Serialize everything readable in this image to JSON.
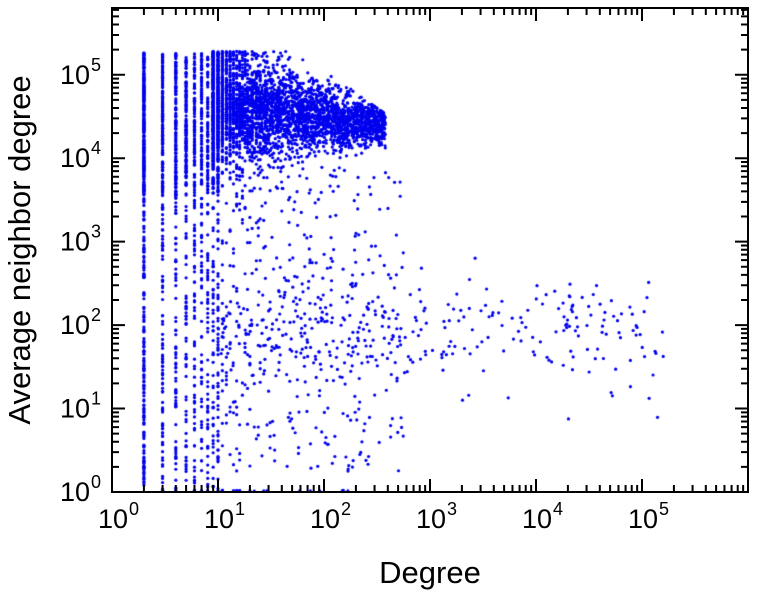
{
  "page": {
    "background": "#ffffff"
  },
  "chart_data": {
    "type": "scatter",
    "title": "",
    "xlabel": "Degree",
    "ylabel": "Average neighbor degree",
    "x_scale": "log",
    "y_scale": "log",
    "x_range_log10": [
      0,
      6.0
    ],
    "y_range_log10": [
      0,
      5.8
    ],
    "x_major_ticks_log10": [
      0,
      1,
      2,
      3,
      4,
      5
    ],
    "y_major_ticks_log10": [
      0,
      1,
      2,
      3,
      4,
      5
    ],
    "tick_label_base": "10",
    "grid": "off",
    "legend": "none",
    "axis_color": "#000000",
    "marker": {
      "shape": "circle",
      "color": "#0000ee",
      "radius": 1.6
    },
    "seed": 42,
    "description": "Log-log scatter of average neighbor degree vs degree: dense vertical columns at integer degrees 1-10 spanning y=1 to 2e5; dense cloud between degree ~8 and ~400 at average neighbor degree ~1e4-2e5 narrowing to the right; sparse scatter below; sparse horizontal band near y~1e2 extending out to degree ~1e5.",
    "clusters": [
      {
        "kind": "columns",
        "name": "integer-degree-columns",
        "xs": [
          1,
          2,
          3,
          4,
          5,
          6,
          7,
          8,
          9,
          10
        ],
        "counts": [
          500,
          400,
          260,
          210,
          180,
          160,
          140,
          130,
          115,
          105
        ],
        "mix": [
          {
            "frac": 0.52,
            "ylog": [
              0.0,
              5.26
            ]
          },
          {
            "frac": 0.48,
            "ylog": [
              3.55,
              5.26
            ]
          }
        ]
      },
      {
        "kind": "blob",
        "name": "high-knn-cloud",
        "count": 3600,
        "xlog": [
          0.95,
          2.58
        ],
        "x_pow": 1.55,
        "y_center_start": 4.68,
        "y_center_end": 4.38,
        "y_sigma_start": 0.4,
        "y_sigma_end": 0.1,
        "y_clamp": [
          3.15,
          5.28
        ],
        "y_top_break": 1.75,
        "y_top_slope": 0.9,
        "snap_int_below": 32
      },
      {
        "kind": "uniform",
        "name": "mid-scatter",
        "count": 420,
        "xlog": [
          0.95,
          2.75
        ],
        "x_pow": 1.35,
        "ylog": [
          0.25,
          3.9
        ],
        "snap_int_below": 32
      },
      {
        "kind": "band",
        "name": "low-knn-band",
        "count": 300,
        "x_mix": [
          {
            "frac": 0.6,
            "xlog": [
              1.0,
              3.0
            ]
          },
          {
            "frac": 0.4,
            "xlog": [
              3.0,
              5.2
            ]
          }
        ],
        "y_mu": 1.95,
        "y_sigma": 0.3
      },
      {
        "kind": "uniform",
        "name": "bottom-row",
        "count": 70,
        "xlog": [
          0.0,
          2.3
        ],
        "x_pow": 1.0,
        "ylog": [
          0.0,
          0.02
        ],
        "snap_int_below": 32
      },
      {
        "kind": "uniform",
        "name": "far-right-sparse",
        "count": 18,
        "xlog": [
          2.9,
          5.15
        ],
        "x_pow": 1.0,
        "ylog": [
          0.8,
          2.2
        ],
        "snap_int_below": 0
      }
    ]
  }
}
